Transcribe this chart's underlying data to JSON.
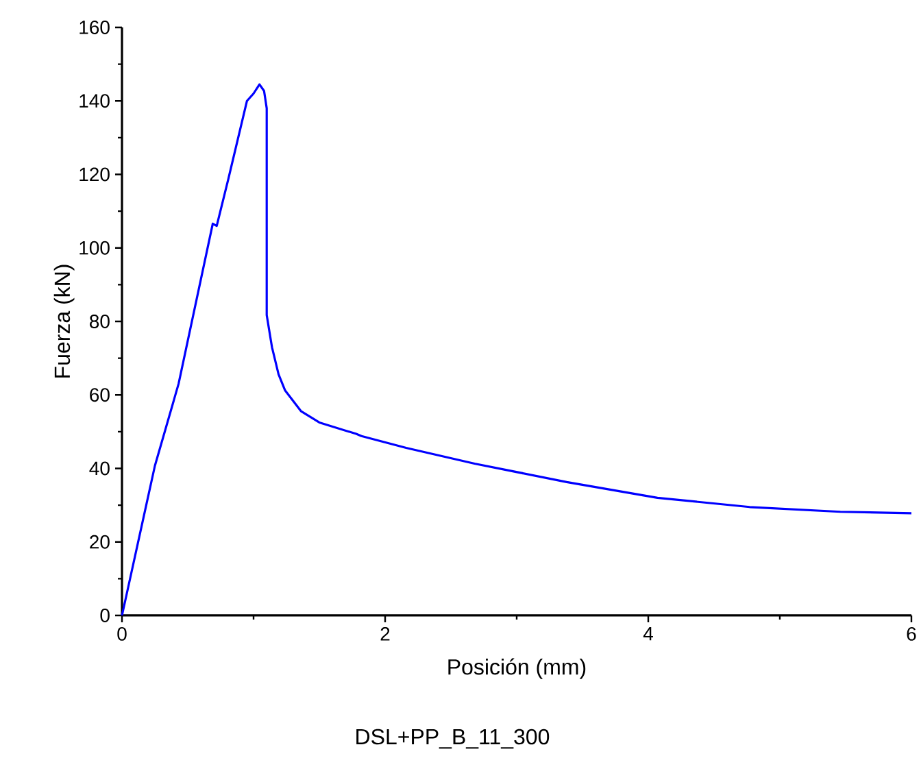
{
  "chart_data": {
    "type": "line",
    "xlabel": "Posición (mm)",
    "ylabel": "Fuerza (kN)",
    "annotations": [
      "DSL+PP_B_11_300"
    ],
    "xlim": [
      0,
      6
    ],
    "xticks": [
      0,
      2,
      4,
      6
    ],
    "ylim": [
      0,
      160
    ],
    "yticks": [
      0,
      20,
      40,
      60,
      80,
      100,
      120,
      140,
      160
    ],
    "grid": false,
    "marker": "none",
    "line_style": "solid",
    "series": [
      {
        "color": "#0000ff",
        "x": [
          0,
          0.25,
          0.43,
          0.69,
          0.72,
          0.81,
          0.95,
          1.0,
          1.045,
          1.08,
          1.1,
          1.1,
          1.14,
          1.19,
          1.24,
          1.36,
          1.5,
          1.78,
          1.82,
          2.16,
          2.68,
          3.38,
          4.07,
          4.77,
          5.46,
          6.0
        ],
        "values": [
          0,
          40.7,
          63,
          106.6,
          106,
          119,
          140,
          142,
          144.5,
          142.7,
          138,
          81.7,
          73,
          65.6,
          61.2,
          55.6,
          52.5,
          49.4,
          48.8,
          45.6,
          41.3,
          36.3,
          32,
          29.5,
          28.2,
          27.8
        ]
      }
    ]
  }
}
